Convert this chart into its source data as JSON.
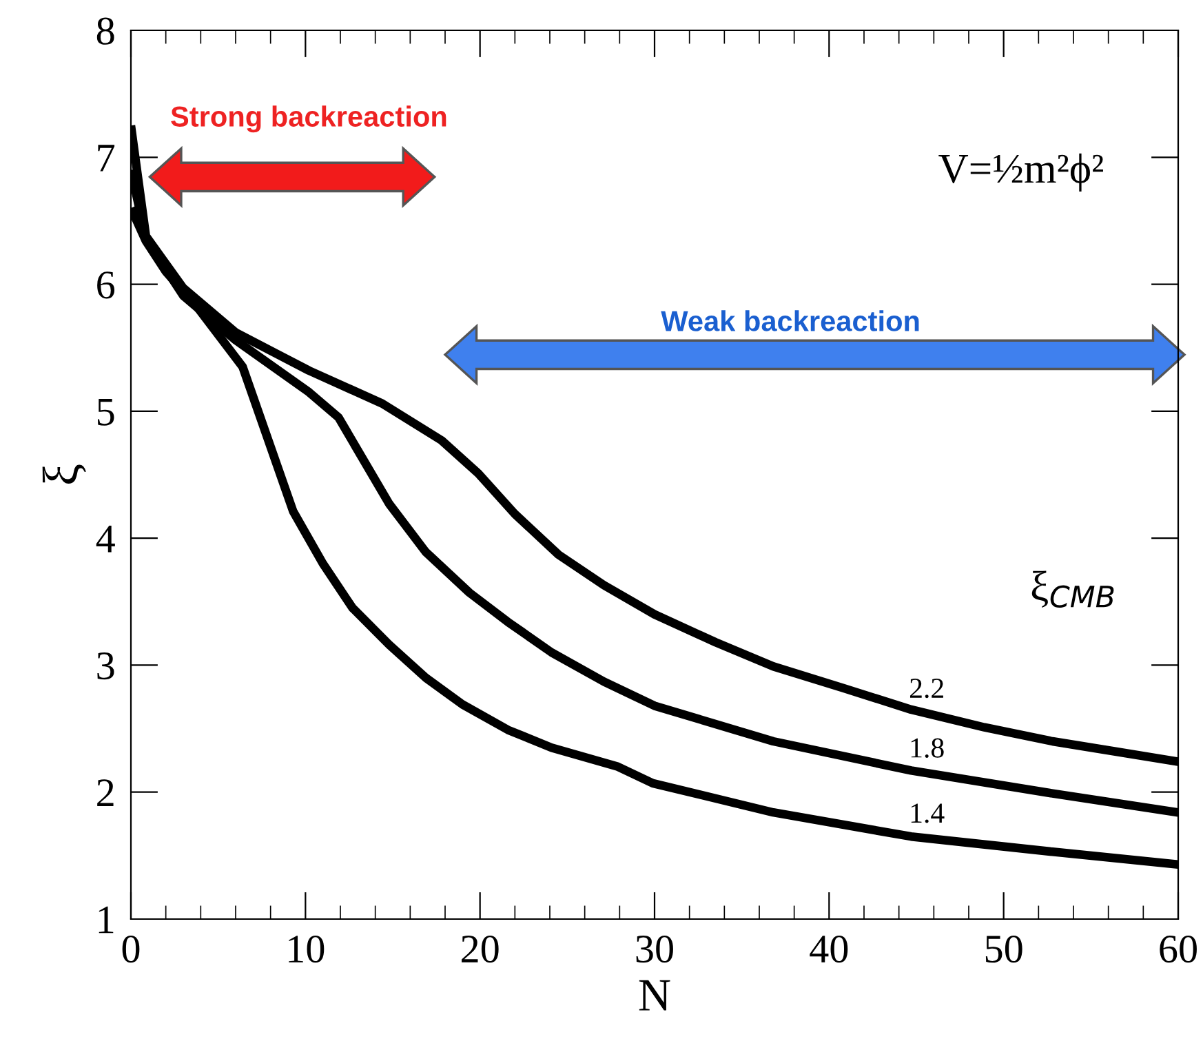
{
  "chart_data": {
    "type": "line",
    "xlabel": "N",
    "ylabel": "ξ",
    "legend_title": "ξ$_{CMB}$",
    "xlim": [
      0,
      60
    ],
    "ylim": [
      1,
      8
    ],
    "xticks": [
      0,
      10,
      20,
      30,
      40,
      50,
      60
    ],
    "yticks": [
      1,
      2,
      3,
      4,
      5,
      6,
      7,
      8
    ],
    "grid": false,
    "legend": false,
    "line_style": "solid",
    "marker": "none",
    "annotations": [
      "Strong backreaction",
      "Weak backreaction",
      "V=½m²ϕ²"
    ],
    "series": [
      {
        "name": "2.2",
        "color": "#000000",
        "x": [
          0,
          0.86,
          3.0,
          6.0,
          10.2,
          14.4,
          17.8,
          19.9,
          22.0,
          24.5,
          27.1,
          30.0,
          33.5,
          36.8,
          40.8,
          44.7,
          48.9,
          52.8,
          56.4,
          60
        ],
        "values": [
          7.25,
          6.38,
          5.97,
          5.62,
          5.32,
          5.06,
          4.77,
          4.51,
          4.19,
          3.87,
          3.63,
          3.4,
          3.18,
          2.99,
          2.82,
          2.65,
          2.51,
          2.4,
          2.32,
          2.24
        ]
      },
      {
        "name": "1.8",
        "color": "#000000",
        "x": [
          0,
          0.86,
          3.0,
          6.0,
          10.2,
          11.9,
          14.8,
          16.9,
          19.4,
          21.6,
          24.1,
          27.1,
          30.0,
          36.8,
          44.7,
          52.8,
          60
        ],
        "values": [
          6.9,
          6.36,
          5.91,
          5.56,
          5.15,
          4.95,
          4.27,
          3.89,
          3.57,
          3.34,
          3.1,
          2.87,
          2.68,
          2.4,
          2.17,
          1.99,
          1.84
        ]
      },
      {
        "name": "1.4",
        "color": "#000000",
        "x": [
          0,
          0.86,
          2.0,
          3.8,
          6.4,
          9.3,
          11.0,
          12.7,
          14.8,
          16.9,
          19.0,
          21.6,
          24.1,
          27.9,
          29.9,
          36.8,
          44.7,
          52.8,
          60
        ],
        "values": [
          6.6,
          6.34,
          6.1,
          5.82,
          5.35,
          4.21,
          3.8,
          3.45,
          3.16,
          2.9,
          2.69,
          2.49,
          2.35,
          2.2,
          2.07,
          1.84,
          1.65,
          1.53,
          1.43
        ]
      }
    ]
  }
}
